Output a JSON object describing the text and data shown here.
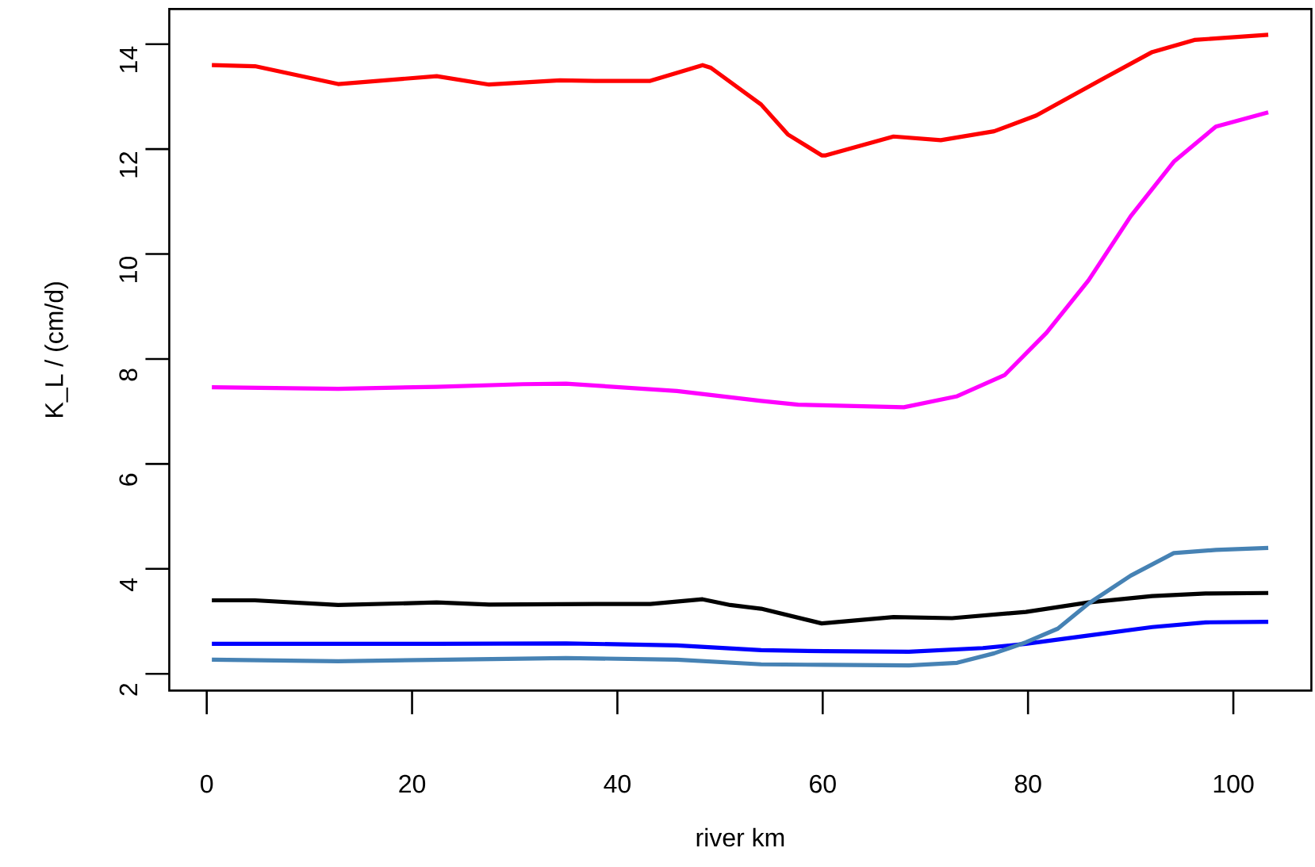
{
  "chart_data": {
    "type": "line",
    "xlabel": "river km",
    "ylabel": "K_L / (cm/d)",
    "xlim": [
      -3.65,
      107.6
    ],
    "ylim": [
      1.68,
      14.67
    ],
    "xticks": [
      0,
      20,
      40,
      60,
      80,
      100
    ],
    "yticks": [
      2,
      4,
      6,
      8,
      10,
      12,
      14
    ],
    "line_style": "solid",
    "marker": "none",
    "series": [
      {
        "color": "#ff0000",
        "x": [
          0.5,
          4.7,
          12.8,
          22.4,
          27.5,
          34.4,
          37.8,
          43.2,
          48.3,
          49.1,
          54,
          56.6,
          59.9,
          60.3,
          66.9,
          71.5,
          76.7,
          80.8,
          87,
          92.1,
          96.2,
          103.4
        ],
        "values": [
          13.6,
          13.58,
          13.24,
          13.39,
          13.23,
          13.31,
          13.3,
          13.3,
          13.6,
          13.55,
          12.85,
          12.28,
          11.88,
          11.88,
          12.24,
          12.17,
          12.34,
          12.64,
          13.31,
          13.85,
          14.08,
          14.18
        ]
      },
      {
        "color": "#ff00ff",
        "x": [
          0.5,
          12.8,
          22.4,
          30.8,
          35,
          45.8,
          54,
          57.6,
          67.9,
          73.1,
          77.7,
          81.8,
          85.9,
          90,
          94.2,
          98.3,
          103.4
        ],
        "values": [
          7.46,
          7.43,
          7.47,
          7.52,
          7.53,
          7.39,
          7.2,
          7.13,
          7.08,
          7.29,
          7.69,
          8.5,
          9.5,
          10.72,
          11.76,
          12.43,
          12.7
        ]
      },
      {
        "color": "#000000",
        "x": [
          0.5,
          4.7,
          12.8,
          22.4,
          27.5,
          37.8,
          43.2,
          48.3,
          51,
          54,
          59.9,
          66.9,
          72.6,
          79.8,
          85.9,
          92.1,
          97.3,
          103.4
        ],
        "values": [
          3.4,
          3.4,
          3.31,
          3.36,
          3.32,
          3.33,
          3.33,
          3.42,
          3.31,
          3.24,
          2.96,
          3.08,
          3.06,
          3.18,
          3.36,
          3.48,
          3.53,
          3.54
        ]
      },
      {
        "color": "#0000ff",
        "x": [
          0.5,
          22.4,
          35,
          45.8,
          54,
          60.2,
          68.4,
          75.6,
          79.8,
          85.9,
          92.1,
          97.3,
          103.4
        ],
        "values": [
          2.57,
          2.57,
          2.58,
          2.54,
          2.45,
          2.43,
          2.42,
          2.49,
          2.57,
          2.73,
          2.89,
          2.98,
          2.99
        ]
      },
      {
        "color": "#4682b4",
        "x": [
          0.5,
          12.8,
          35,
          45.8,
          54,
          60.2,
          68.4,
          73.1,
          76.7,
          79.8,
          82.9,
          85.9,
          90,
          94.2,
          98.3,
          103.4
        ],
        "values": [
          2.27,
          2.24,
          2.3,
          2.27,
          2.18,
          2.17,
          2.16,
          2.21,
          2.39,
          2.6,
          2.86,
          3.34,
          3.87,
          4.3,
          4.36,
          4.4
        ]
      }
    ]
  }
}
